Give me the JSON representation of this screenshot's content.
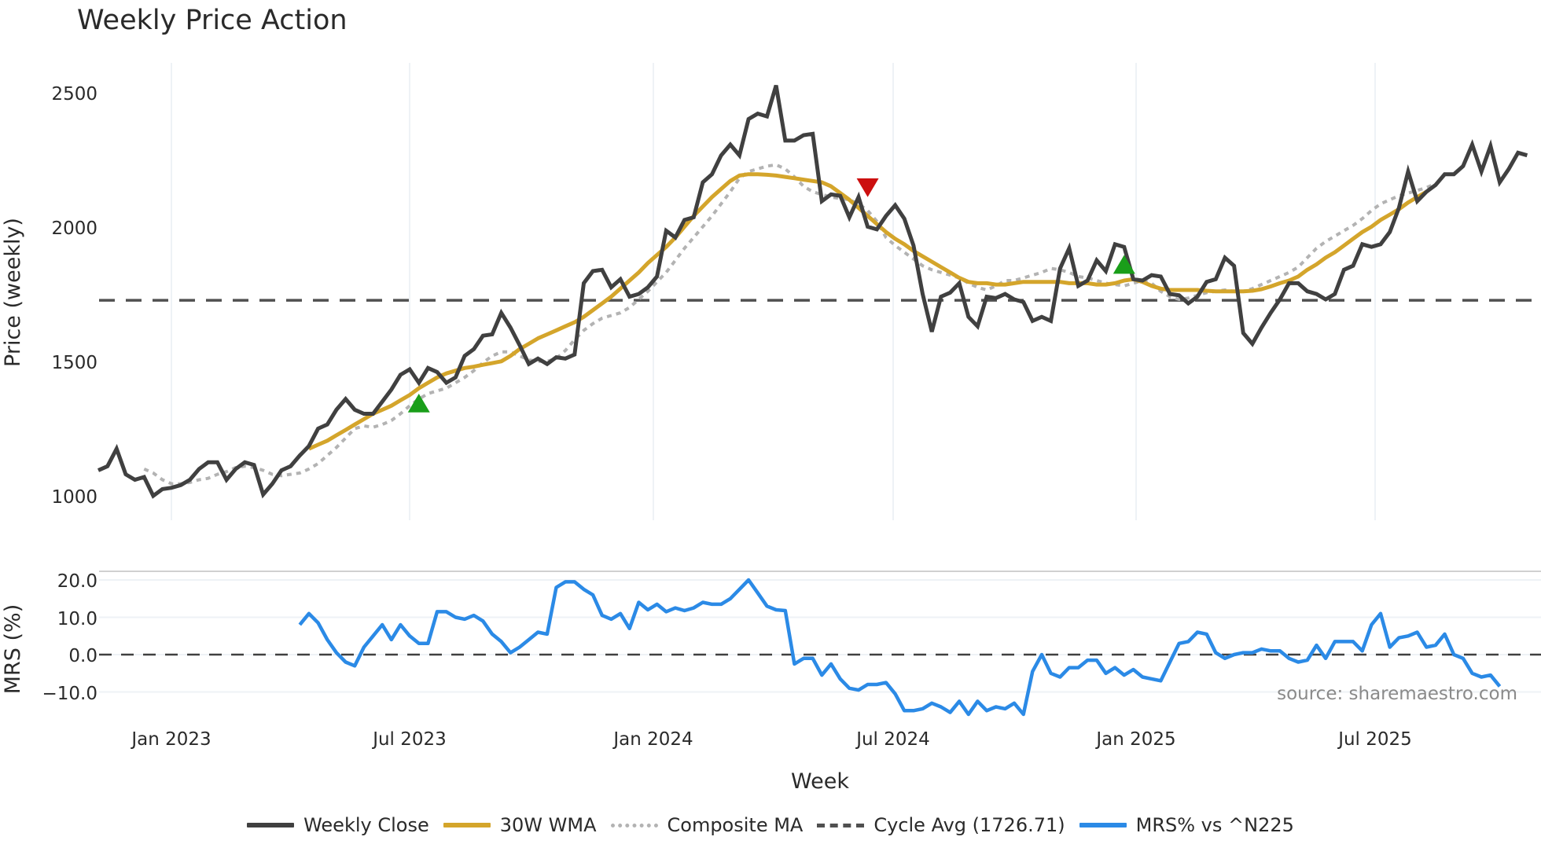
{
  "title": "Weekly Price Action",
  "colors": {
    "weekly_close": "#404040",
    "wma": "#d4a52b",
    "composite_ma": "#b3b3b3",
    "cycle_avg": "#505050",
    "mrs": "#2b8ae6",
    "buy_marker": "#1a9e1a",
    "sell_marker": "#cc0f0f",
    "grid": "#eef2f6"
  },
  "source_label": "source: sharemaestro.com",
  "legend": [
    {
      "label": "Weekly Close",
      "style": "solid",
      "color": "#404040"
    },
    {
      "label": "30W WMA",
      "style": "solid",
      "color": "#d4a52b"
    },
    {
      "label": "Composite MA",
      "style": "dotted",
      "color": "#b3b3b3"
    },
    {
      "label": "Cycle Avg (1726.71)",
      "style": "dashed",
      "color": "#505050"
    },
    {
      "label": "MRS% vs ^N225",
      "style": "solid",
      "color": "#2b8ae6"
    }
  ],
  "chart_data": [
    {
      "type": "line",
      "title": "Weekly Price Action",
      "xlabel": "Week",
      "ylabel": "Price (weekly)",
      "ylim": [
        920,
        2620
      ],
      "yticks": [
        1000,
        1500,
        2000,
        2500
      ],
      "xticks": [
        "Jan 2023",
        "Jul 2023",
        "Jan 2024",
        "Jul 2024",
        "Jan 2025",
        "Jul 2025"
      ],
      "x_note": "weeks indexed from 0 (approx. early Nov 2022) to 160 (approx. late Nov 2025); Jan 2023 ≈ week 8",
      "cycle_avg": 1726.71,
      "series": [
        {
          "name": "Weekly Close",
          "start_week": 0,
          "values": [
            1095,
            1110,
            1175,
            1080,
            1060,
            1070,
            1000,
            1025,
            1030,
            1040,
            1060,
            1100,
            1125,
            1125,
            1060,
            1100,
            1125,
            1115,
            1005,
            1045,
            1095,
            1110,
            1150,
            1185,
            1250,
            1265,
            1320,
            1360,
            1320,
            1305,
            1305,
            1350,
            1395,
            1450,
            1470,
            1420,
            1475,
            1460,
            1420,
            1440,
            1520,
            1545,
            1595,
            1600,
            1680,
            1625,
            1560,
            1490,
            1510,
            1490,
            1515,
            1510,
            1525,
            1790,
            1835,
            1840,
            1775,
            1805,
            1740,
            1750,
            1775,
            1815,
            1985,
            1960,
            2025,
            2035,
            2165,
            2195,
            2265,
            2305,
            2265,
            2400,
            2420,
            2410,
            2525,
            2320,
            2320,
            2340,
            2345,
            2095,
            2120,
            2115,
            2035,
            2110,
            2000,
            1990,
            2040,
            2080,
            2030,
            1930,
            1750,
            1610,
            1740,
            1755,
            1790,
            1665,
            1630,
            1740,
            1735,
            1750,
            1730,
            1720,
            1650,
            1665,
            1650,
            1845,
            1920,
            1780,
            1800,
            1875,
            1835,
            1935,
            1925,
            1805,
            1800,
            1820,
            1815,
            1750,
            1745,
            1715,
            1740,
            1795,
            1805,
            1885,
            1855,
            1605,
            1565,
            1625,
            1680,
            1730,
            1790,
            1790,
            1760,
            1750,
            1730,
            1750,
            1840,
            1855,
            1935,
            1925,
            1935,
            1980,
            2070,
            2205,
            2095,
            2130,
            2155,
            2195,
            2195,
            2225,
            2305,
            2205,
            2300,
            2165,
            2215,
            2275,
            2265
          ]
        },
        {
          "name": "30W WMA",
          "start_week": 23,
          "values": [
            1175,
            1190,
            1205,
            1225,
            1245,
            1265,
            1285,
            1305,
            1320,
            1335,
            1355,
            1375,
            1400,
            1420,
            1440,
            1455,
            1465,
            1475,
            1480,
            1487,
            1493,
            1500,
            1520,
            1545,
            1565,
            1585,
            1600,
            1615,
            1630,
            1645,
            1665,
            1690,
            1715,
            1740,
            1770,
            1800,
            1830,
            1865,
            1895,
            1925,
            1960,
            2000,
            2040,
            2075,
            2110,
            2140,
            2170,
            2190,
            2195,
            2195,
            2193,
            2190,
            2185,
            2180,
            2175,
            2170,
            2165,
            2150,
            2125,
            2100,
            2070,
            2040,
            2010,
            1980,
            1955,
            1935,
            1910,
            1890,
            1870,
            1850,
            1830,
            1810,
            1795,
            1790,
            1790,
            1785,
            1785,
            1790,
            1795,
            1795,
            1795,
            1795,
            1795,
            1790,
            1790,
            1790,
            1785,
            1785,
            1790,
            1800,
            1805,
            1795,
            1780,
            1770,
            1765,
            1765,
            1765,
            1765,
            1762,
            1760,
            1760,
            1760,
            1760,
            1762,
            1768,
            1778,
            1790,
            1800,
            1815,
            1840,
            1860,
            1885,
            1905,
            1930,
            1955,
            1980,
            2000,
            2025,
            2045,
            2065,
            2090,
            2110,
            2130
          ]
        },
        {
          "name": "Composite MA",
          "start_week": 5,
          "values": [
            1100,
            1085,
            1060,
            1045,
            1045,
            1050,
            1060,
            1065,
            1080,
            1090,
            1105,
            1110,
            1105,
            1095,
            1080,
            1075,
            1080,
            1085,
            1100,
            1120,
            1150,
            1180,
            1215,
            1250,
            1260,
            1255,
            1265,
            1280,
            1305,
            1335,
            1360,
            1380,
            1390,
            1400,
            1420,
            1440,
            1465,
            1495,
            1520,
            1535,
            1535,
            1520,
            1505,
            1500,
            1500,
            1510,
            1540,
            1580,
            1615,
            1640,
            1660,
            1670,
            1680,
            1700,
            1730,
            1760,
            1795,
            1830,
            1875,
            1920,
            1960,
            2000,
            2040,
            2085,
            2130,
            2180,
            2205,
            2215,
            2225,
            2230,
            2215,
            2185,
            2150,
            2130,
            2120,
            2110,
            2105,
            2100,
            2085,
            2060,
            2020,
            1960,
            1930,
            1905,
            1880,
            1855,
            1840,
            1830,
            1820,
            1810,
            1790,
            1775,
            1765,
            1780,
            1800,
            1800,
            1810,
            1820,
            1830,
            1845,
            1840,
            1830,
            1815,
            1810,
            1800,
            1790,
            1785,
            1780,
            1790,
            1800,
            1790,
            1760,
            1740,
            1730,
            1735,
            1745,
            1755,
            1760,
            1765,
            1760,
            1760,
            1770,
            1785,
            1800,
            1815,
            1830,
            1850,
            1885,
            1920,
            1945,
            1965,
            1985,
            2005,
            2030,
            2060,
            2085,
            2100,
            2115,
            2125,
            2135,
            2145,
            2160
          ]
        },
        {
          "name": "Cycle Avg (1726.71)",
          "constant": 1726.71
        }
      ],
      "markers": [
        {
          "type": "buy",
          "shape": "triangle-up",
          "week": 35,
          "value": 1345
        },
        {
          "type": "sell",
          "shape": "triangle-down",
          "week": 84,
          "value": 2145
        },
        {
          "type": "buy",
          "shape": "triangle-up",
          "week": 112,
          "value": 1860
        }
      ]
    },
    {
      "type": "line",
      "title": "",
      "xlabel": "Week",
      "ylabel": "MRS (%)",
      "ylim": [
        -13,
        22
      ],
      "yticks": [
        20.0,
        10.0,
        0.0,
        -10.0
      ],
      "ytick_labels": [
        "20.0",
        "10.0",
        "0.0",
        "−10.0"
      ],
      "zero_line": "dashed",
      "series": [
        {
          "name": "MRS% vs ^N225",
          "start_week": 22,
          "values": [
            8,
            11,
            8.5,
            4,
            0.5,
            -2,
            -3,
            2,
            5,
            8,
            4,
            8,
            5,
            3,
            3,
            11.5,
            11.5,
            10,
            9.5,
            10.5,
            9,
            5.5,
            3.5,
            0.5,
            2,
            4,
            6,
            5.5,
            18,
            19.5,
            19.5,
            17.5,
            16,
            10.5,
            9.5,
            11,
            7,
            14,
            12,
            13.5,
            11.5,
            12.5,
            11.8,
            12.5,
            14,
            13.5,
            13.5,
            15,
            17.5,
            20,
            16.5,
            13,
            12,
            11.8,
            -2.5,
            -1,
            -1,
            -5.5,
            -2.5,
            -6.5,
            -9,
            -9.5,
            -8,
            -8,
            -7.5,
            -10.5,
            -15,
            -15,
            -14.5,
            -13,
            -14,
            -15.5,
            -12.5,
            -16,
            -12.5,
            -15,
            -14,
            -14.5,
            -13,
            -16,
            -4.5,
            0,
            -5,
            -6,
            -3.5,
            -3.5,
            -1.5,
            -1.5,
            -5,
            -3.5,
            -5.5,
            -4,
            -6,
            -6.5,
            -7,
            -2,
            3,
            3.5,
            6,
            5.5,
            0.5,
            -1,
            0,
            0.5,
            0.5,
            1.5,
            1,
            1,
            -1,
            -2,
            -1.5,
            2.5,
            -1,
            3.5,
            3.5,
            3.5,
            1,
            8,
            11,
            2,
            4.5,
            5,
            6,
            2,
            2.5,
            5.5,
            0,
            -1,
            -5,
            -6,
            -5.5,
            -8.5
          ]
        }
      ]
    }
  ],
  "axis": {
    "price_ylabel": "Price (weekly)",
    "mrs_ylabel": "MRS (%)",
    "xlabel": "Week",
    "price_yticks": [
      "2500",
      "2000",
      "1500",
      "1000"
    ],
    "mrs_yticks": [
      "20.0",
      "10.0",
      "0.0",
      "−10.0"
    ],
    "xticks": [
      "Jan 2023",
      "Jul 2023",
      "Jan 2024",
      "Jul 2024",
      "Jan 2025",
      "Jul 2025"
    ]
  }
}
